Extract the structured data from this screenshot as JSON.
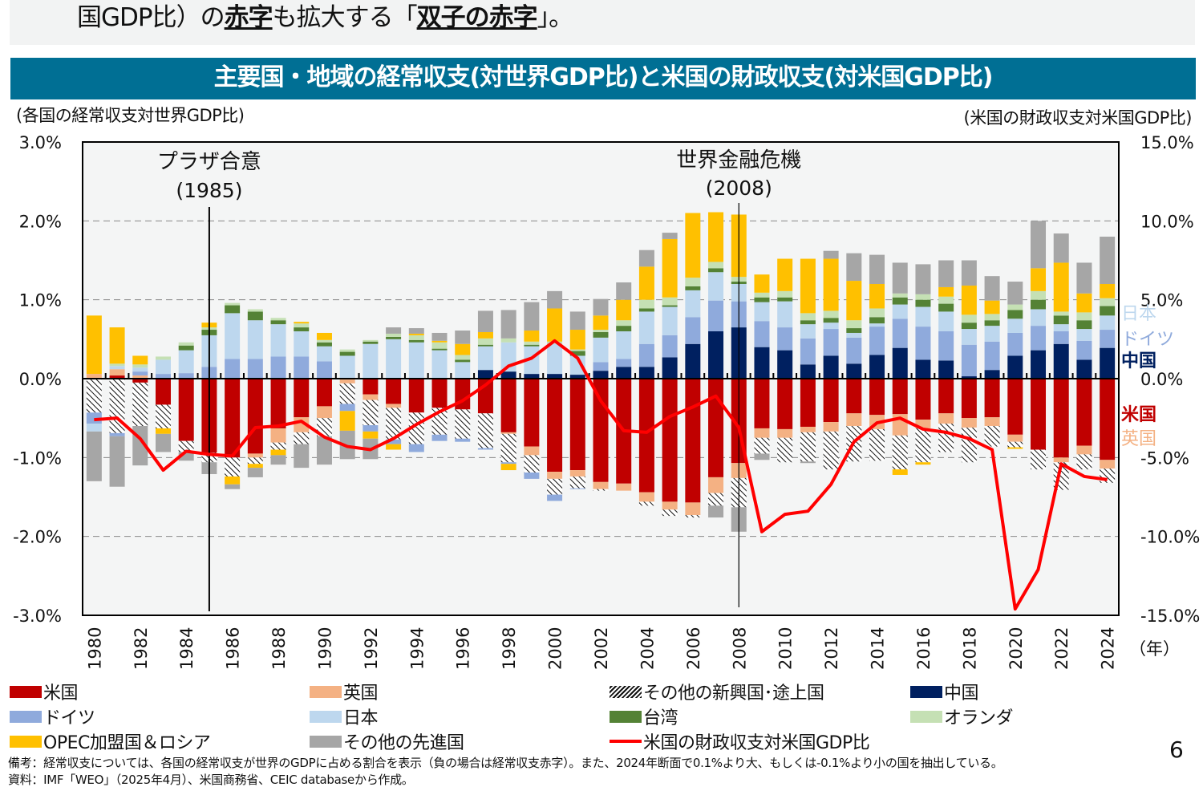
{
  "banner": {
    "prefix": "国GDP比）の",
    "bold1": "赤字",
    "middle": "も拡大する「",
    "bold2": "双子の赤字",
    "suffix": "」。"
  },
  "header": {
    "title": "主要国・地域の経常収支(対世界GDP比)と米国の財政収支(対米国GDP比)"
  },
  "page_number": "6",
  "footnotes": [
    "備考：経常収支については、各国の経常収支が世界のGDPに占める割合を表示（負の場合は経常収支赤字）。また、2024年断面で0.1%より大、もしくは-0.1%より小の国を抽出している。",
    "資料：IMF「WEO」（2025年4月）、米国商務省、CEIC databaseから作成。"
  ],
  "chart_data": {
    "type": "bar",
    "stacked": true,
    "title": "主要国・地域の経常収支(対世界GDP比)と米国の財政収支(対米国GDP比)",
    "ylabel": "(各国の経常収支対世界GDP比)",
    "y2label": "(米国の財政収支対米国GDP比)",
    "xunit": "（年）",
    "ylim": [
      -3.0,
      3.0
    ],
    "y2lim": [
      -15.0,
      15.0
    ],
    "yticks": [
      "3.0%",
      "2.0%",
      "1.0%",
      "0.0%",
      "-1.0%",
      "-2.0%",
      "-3.0%"
    ],
    "y2ticks": [
      "15.0%",
      "10.0%",
      "5.0%",
      "0.0%",
      "-5.0%",
      "-10.0%",
      "-15.0%"
    ],
    "grid": "dashed horizontal",
    "legend_placement": "bottom",
    "annotations": [
      {
        "year": 1985,
        "line1": "プラザ合意",
        "line2": "(1985)"
      },
      {
        "year": 2008,
        "line1": "世界金融危機",
        "line2": "(2008)"
      }
    ],
    "right_labels": [
      {
        "text": "日本",
        "color": "#BDD7EE"
      },
      {
        "text": "ドイツ",
        "color": "#8FAADC"
      },
      {
        "text": "中国",
        "color": "#002060"
      },
      {
        "text": "米国",
        "color": "#C00000"
      },
      {
        "text": "英国",
        "color": "#F4B183"
      }
    ],
    "categories": [
      1980,
      1981,
      1982,
      1983,
      1984,
      1985,
      1986,
      1987,
      1988,
      1989,
      1990,
      1991,
      1992,
      1993,
      1994,
      1995,
      1996,
      1997,
      1998,
      1999,
      2000,
      2001,
      2002,
      2003,
      2004,
      2005,
      2006,
      2007,
      2008,
      2009,
      2010,
      2011,
      2012,
      2013,
      2014,
      2015,
      2016,
      2017,
      2018,
      2019,
      2020,
      2021,
      2022,
      2023,
      2024
    ],
    "series": [
      {
        "key": "us",
        "name": "米国",
        "color": "#C00000",
        "values": [
          0,
          0.04,
          -0.05,
          -0.33,
          -0.79,
          -0.94,
          -1.0,
          -0.95,
          -0.63,
          -0.49,
          -0.35,
          0,
          -0.2,
          -0.32,
          -0.43,
          -0.37,
          -0.39,
          -0.44,
          -0.68,
          -0.86,
          -1.18,
          -1.16,
          -1.31,
          -1.33,
          -1.44,
          -1.56,
          -1.57,
          -1.25,
          -1.07,
          -0.63,
          -0.64,
          -0.61,
          -0.55,
          -0.44,
          -0.46,
          -0.45,
          -0.52,
          -0.44,
          -0.5,
          -0.49,
          -0.71,
          -0.9,
          -1.0,
          -0.85,
          -1.03
        ]
      },
      {
        "key": "uk",
        "name": "英国",
        "color": "#F4B183",
        "values": [
          0.06,
          0.08,
          0.04,
          0,
          0,
          0,
          0,
          -0.05,
          -0.18,
          -0.19,
          -0.15,
          -0.06,
          -0.07,
          -0.05,
          0,
          0,
          0,
          0,
          -0.02,
          -0.11,
          -0.09,
          -0.08,
          -0.09,
          -0.09,
          -0.12,
          -0.1,
          -0.16,
          -0.2,
          -0.19,
          -0.12,
          -0.11,
          -0.07,
          -0.12,
          -0.16,
          -0.18,
          -0.27,
          -0.11,
          -0.13,
          -0.12,
          -0.11,
          -0.09,
          0,
          -0.06,
          -0.11,
          -0.11
        ]
      },
      {
        "key": "emerging",
        "name": "その他の新興国･途上国",
        "color": "hatch",
        "values": [
          -0.43,
          -0.69,
          -0.55,
          -0.3,
          -0.14,
          -0.12,
          -0.24,
          -0.08,
          -0.09,
          -0.15,
          -0.23,
          -0.26,
          -0.32,
          -0.4,
          -0.4,
          -0.34,
          -0.37,
          -0.44,
          -0.36,
          -0.22,
          -0.2,
          -0.15,
          -0.02,
          0,
          -0.05,
          -0.08,
          -0.03,
          -0.16,
          -0.37,
          -0.2,
          -0.31,
          -0.37,
          -0.48,
          -0.45,
          -0.4,
          -0.43,
          -0.43,
          -0.36,
          -0.44,
          -0.26,
          -0.07,
          -0.25,
          -0.35,
          -0.19,
          -0.18
        ]
      },
      {
        "key": "china",
        "name": "中国",
        "color": "#002060",
        "values": [
          0,
          0,
          0,
          0,
          0,
          0,
          0,
          0,
          0,
          0,
          0,
          0,
          0,
          0,
          0,
          0,
          0,
          0.11,
          0.09,
          0.06,
          0.06,
          0.05,
          0.1,
          0.15,
          0.15,
          0.27,
          0.44,
          0.6,
          0.65,
          0.4,
          0.36,
          0.18,
          0.29,
          0.19,
          0.3,
          0.39,
          0.24,
          0.23,
          0.03,
          0.11,
          0.29,
          0.36,
          0.44,
          0.24,
          0.39
        ]
      },
      {
        "key": "germany",
        "name": "ドイツ",
        "color": "#8FAADC",
        "values": [
          -0.14,
          -0.04,
          0.05,
          0.06,
          0.07,
          0.15,
          0.25,
          0.25,
          0.28,
          0.28,
          0.22,
          -0.09,
          -0.08,
          -0.06,
          -0.1,
          -0.08,
          -0.04,
          -0.02,
          -0.02,
          -0.08,
          -0.08,
          -0.01,
          0.11,
          0.1,
          0.29,
          0.28,
          0.34,
          0.39,
          0.33,
          0.33,
          0.29,
          0.33,
          0.34,
          0.33,
          0.36,
          0.37,
          0.42,
          0.37,
          0.4,
          0.36,
          0.29,
          0.31,
          0.16,
          0.24,
          0.23
        ]
      },
      {
        "key": "japan",
        "name": "日本",
        "color": "#BDD7EE",
        "values": [
          -0.1,
          0.04,
          0.05,
          0.18,
          0.29,
          0.4,
          0.58,
          0.49,
          0.41,
          0.32,
          0.19,
          0.29,
          0.44,
          0.5,
          0.46,
          0.36,
          0.21,
          0.3,
          0.37,
          0.35,
          0.38,
          0.24,
          0.31,
          0.35,
          0.41,
          0.36,
          0.34,
          0.36,
          0.22,
          0.24,
          0.33,
          0.18,
          0.08,
          0.06,
          0.04,
          0.18,
          0.25,
          0.25,
          0.2,
          0.2,
          0.18,
          0.21,
          0.09,
          0.15,
          0.18
        ]
      },
      {
        "key": "taiwan",
        "name": "台湾",
        "color": "#548235",
        "values": [
          0,
          0,
          0,
          0,
          0.06,
          0.07,
          0.1,
          0.11,
          0.05,
          0.05,
          0.05,
          0.05,
          0.03,
          0.03,
          0.03,
          0.02,
          0.03,
          0.02,
          0,
          0.02,
          0,
          0.06,
          0.07,
          0.07,
          0.04,
          0.02,
          0.05,
          0.05,
          0.03,
          0.06,
          0.05,
          0.05,
          0.06,
          0.06,
          0.08,
          0.09,
          0.09,
          0.1,
          0.08,
          0.07,
          0.11,
          0.12,
          0.11,
          0.11,
          0.12
        ]
      },
      {
        "key": "netherlands",
        "name": "オランダ",
        "color": "#C5E0B4",
        "values": [
          0,
          0.03,
          0.04,
          0.04,
          0.04,
          0.03,
          0.03,
          0.03,
          0.03,
          0.05,
          0.03,
          0.03,
          0.02,
          0.04,
          0.06,
          0.08,
          0.06,
          0.08,
          0.05,
          0.04,
          0.03,
          0.02,
          0.03,
          0.07,
          0.11,
          0.1,
          0.11,
          0.08,
          0.06,
          0.06,
          0.08,
          0.09,
          0.09,
          0.1,
          0.11,
          0.05,
          0.07,
          0.09,
          0.1,
          0.08,
          0.07,
          0.11,
          0.05,
          0.1,
          0.1
        ]
      },
      {
        "key": "opec",
        "name": "OPEC加盟国＆ロシア",
        "color": "#FFC000",
        "values": [
          0.74,
          0.46,
          0.11,
          -0.07,
          0,
          0.06,
          -0.1,
          -0.05,
          -0.07,
          0.02,
          0.09,
          -0.25,
          -0.09,
          -0.07,
          0.02,
          0.02,
          0.14,
          0.08,
          -0.08,
          0.14,
          0.42,
          0.25,
          0.18,
          0.26,
          0.42,
          0.74,
          0.82,
          0.63,
          0.79,
          0.23,
          0.41,
          0.69,
          0.66,
          0.5,
          0.31,
          -0.07,
          -0.03,
          0.12,
          0.37,
          0.17,
          -0.02,
          0.29,
          0.62,
          0.24,
          0.18
        ]
      },
      {
        "key": "other_adv",
        "name": "その他の先進国",
        "color": "#A6A6A6",
        "values": [
          -0.63,
          -0.64,
          -0.5,
          -0.23,
          -0.11,
          -0.15,
          -0.06,
          -0.12,
          -0.12,
          -0.3,
          -0.36,
          -0.36,
          -0.26,
          0.08,
          0.07,
          0.1,
          0.17,
          0.27,
          0.36,
          0.36,
          0.22,
          0.23,
          0.21,
          0.22,
          0.21,
          0.08,
          0,
          -0.15,
          -0.31,
          -0.08,
          0,
          -0.02,
          0.1,
          0.35,
          0.37,
          0.39,
          0.38,
          0.34,
          0.32,
          0.31,
          0.29,
          0.6,
          0.37,
          0.39,
          0.6
        ]
      }
    ],
    "line": {
      "name": "米国の財政収支対米国GDP比",
      "axis": "right",
      "color": "#FF0000",
      "values": [
        -2.6,
        -2.5,
        -3.8,
        -5.8,
        -4.6,
        -4.8,
        -4.9,
        -3.1,
        -3.0,
        -2.7,
        -3.7,
        -4.3,
        -4.5,
        -3.8,
        -2.9,
        -2.1,
        -1.4,
        -0.4,
        0.8,
        1.3,
        2.4,
        1.3,
        -1.4,
        -3.3,
        -3.4,
        -2.4,
        -1.8,
        -1.1,
        -3.1,
        -9.7,
        -8.6,
        -8.4,
        -6.7,
        -4.0,
        -2.8,
        -2.5,
        -3.2,
        -3.4,
        -3.8,
        -4.5,
        -14.6,
        -12.1,
        -5.4,
        -6.2,
        -6.4
      ]
    }
  }
}
